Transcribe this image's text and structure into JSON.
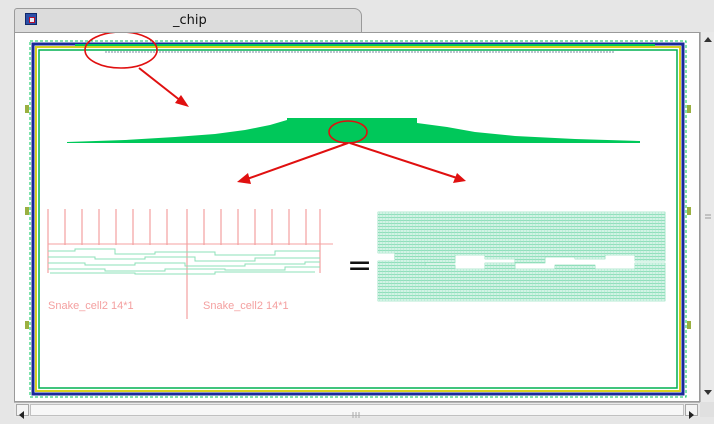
{
  "tab": {
    "title": "_chip",
    "icon": "window-icon"
  },
  "canvas": {
    "labels": {
      "snake_left": "Snake_cell2  14*1",
      "snake_right": "Snake_cell2  14*1",
      "equals": "="
    }
  },
  "colors": {
    "layout_green": "#00c85a",
    "pink_trace": "#f4a0a0",
    "mint": "#8ee0b8",
    "annotation_red": "#e01010",
    "border_yellow": "#d8d020",
    "border_blue": "#1a2a9a"
  },
  "scrollbars": {
    "vertical_icon": "arrow-icons",
    "horizontal_icon": "arrow-icons"
  }
}
